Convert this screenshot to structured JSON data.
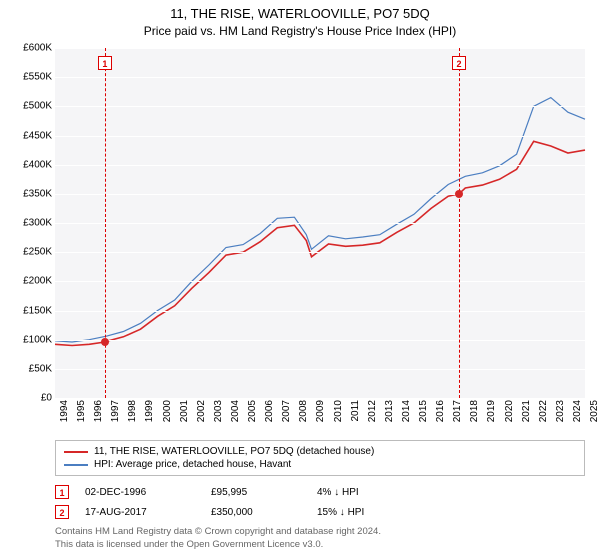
{
  "title": "11, THE RISE, WATERLOOVILLE, PO7 5DQ",
  "subtitle": "Price paid vs. HM Land Registry's House Price Index (HPI)",
  "chart": {
    "type": "line",
    "background_color": "#f5f5f7",
    "grid_color": "#ffffff",
    "xlim": [
      1994,
      2025
    ],
    "ylim": [
      0,
      600000
    ],
    "ytick_step": 50000,
    "ytick_labels": [
      "£0",
      "£50K",
      "£100K",
      "£150K",
      "£200K",
      "£250K",
      "£300K",
      "£350K",
      "£400K",
      "£450K",
      "£500K",
      "£550K",
      "£600K"
    ],
    "xtick_step": 1,
    "xtick_labels": [
      "1994",
      "1995",
      "1996",
      "1997",
      "1998",
      "1999",
      "2000",
      "2001",
      "2002",
      "2003",
      "2004",
      "2005",
      "2006",
      "2007",
      "2008",
      "2009",
      "2010",
      "2011",
      "2012",
      "2013",
      "2014",
      "2015",
      "2016",
      "2017",
      "2018",
      "2019",
      "2020",
      "2021",
      "2022",
      "2023",
      "2024",
      "2025"
    ],
    "label_fontsize": 10,
    "series": [
      {
        "name": "property",
        "label": "11, THE RISE, WATERLOOVILLE, PO7 5DQ (detached house)",
        "color": "#d62728",
        "line_width": 1.6,
        "x": [
          1994,
          1995,
          1996,
          1996.92,
          1997,
          1998,
          1999,
          2000,
          2001,
          2002,
          2003,
          2004,
          2005,
          2006,
          2007,
          2008,
          2008.7,
          2009,
          2010,
          2011,
          2012,
          2013,
          2014,
          2015,
          2016,
          2017,
          2017.63,
          2018,
          2019,
          2020,
          2021,
          2022,
          2023,
          2024,
          2025
        ],
        "y": [
          92000,
          90000,
          92000,
          95995,
          97000,
          105000,
          118000,
          140000,
          158000,
          188000,
          215000,
          245000,
          250000,
          268000,
          292000,
          296000,
          270000,
          242000,
          264000,
          260000,
          262000,
          266000,
          284000,
          300000,
          325000,
          346000,
          350000,
          360000,
          365000,
          375000,
          392000,
          440000,
          432000,
          420000,
          425000
        ]
      },
      {
        "name": "hpi",
        "label": "HPI: Average price, detached house, Havant",
        "color": "#4b7ec1",
        "line_width": 1.2,
        "x": [
          1994,
          1995,
          1996,
          1997,
          1998,
          1999,
          2000,
          2001,
          2002,
          2003,
          2004,
          2005,
          2006,
          2007,
          2008,
          2008.7,
          2009,
          2010,
          2011,
          2012,
          2013,
          2014,
          2015,
          2016,
          2017,
          2018,
          2019,
          2020,
          2021,
          2022,
          2023,
          2024,
          2025
        ],
        "y": [
          98000,
          96000,
          100000,
          106000,
          114000,
          128000,
          150000,
          168000,
          200000,
          228000,
          258000,
          263000,
          282000,
          308000,
          310000,
          280000,
          255000,
          278000,
          273000,
          276000,
          280000,
          298000,
          315000,
          342000,
          366000,
          380000,
          386000,
          398000,
          418000,
          500000,
          515000,
          490000,
          478000
        ]
      }
    ],
    "markers": [
      {
        "id": "1",
        "x": 1996.92,
        "y": 95995
      },
      {
        "id": "2",
        "x": 2017.63,
        "y": 350000
      }
    ]
  },
  "transactions": [
    {
      "id": "1",
      "date": "02-DEC-1996",
      "price": "£95,995",
      "delta": "4% ↓ HPI"
    },
    {
      "id": "2",
      "date": "17-AUG-2017",
      "price": "£350,000",
      "delta": "15% ↓ HPI"
    }
  ],
  "footer": {
    "line1": "Contains HM Land Registry data © Crown copyright and database right 2024.",
    "line2": "This data is licensed under the Open Government Licence v3.0."
  }
}
